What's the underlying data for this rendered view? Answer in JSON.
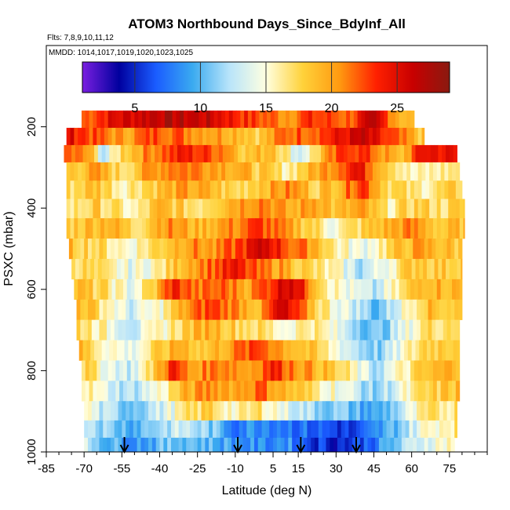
{
  "chart_data": {
    "type": "heatmap",
    "title": "ATOM3 Northbound Days_Since_BdyInf_All",
    "flights_note": "Flts: 7,8,9,10,11,12",
    "dates_note": "MMDD: 1014,1017,1019,1020,1023,1025",
    "xlabel": "Latitude (deg N)",
    "ylabel": "PSXC (mbar)",
    "xlim": [
      -85,
      90
    ],
    "ylim": [
      1000,
      0
    ],
    "x_ticks": [
      -85,
      -70,
      -55,
      -40,
      -25,
      -10,
      5,
      15,
      30,
      45,
      60,
      75
    ],
    "x_tick_labels": [
      "-85",
      "-70",
      "-55",
      "-40",
      "-25",
      "-10",
      "5",
      "15",
      "30",
      "45",
      "60",
      "75"
    ],
    "y_ticks": [
      200,
      400,
      600,
      800,
      1000
    ],
    "y_tick_labels": [
      "200",
      "400",
      "600",
      "800",
      "1000"
    ],
    "colorbar": {
      "range": [
        1,
        29
      ],
      "ticks": [
        5,
        10,
        15,
        20,
        25
      ],
      "tick_labels": [
        "5",
        "10",
        "15",
        "20",
        "25"
      ],
      "colors": [
        "#7a1fe0",
        "#00009e",
        "#1a5cff",
        "#3aaaf0",
        "#b8e4fa",
        "#ffffe0",
        "#ffd23a",
        "#ff9a10",
        "#ff2000",
        "#c80000",
        "#8a1a10"
      ]
    },
    "arrows_at_latitude": [
      -54,
      -9,
      16,
      38
    ],
    "bands": [
      {
        "p": 180,
        "lat_min": -71,
        "lat_max": 61,
        "anchors": [
          [
            -70,
            22
          ],
          [
            -58,
            25
          ],
          [
            -40,
            27
          ],
          [
            -20,
            26
          ],
          [
            -5,
            23
          ],
          [
            10,
            21
          ],
          [
            20,
            23
          ],
          [
            35,
            22
          ],
          [
            45,
            26
          ],
          [
            55,
            20
          ],
          [
            61,
            18
          ]
        ]
      },
      {
        "p": 225,
        "lat_min": -77,
        "lat_max": 65,
        "anchors": [
          [
            -76,
            25
          ],
          [
            -65,
            22
          ],
          [
            -55,
            20
          ],
          [
            -40,
            23
          ],
          [
            -25,
            21
          ],
          [
            -10,
            20
          ],
          [
            0,
            18
          ],
          [
            10,
            22
          ],
          [
            25,
            23
          ],
          [
            40,
            26
          ],
          [
            52,
            22
          ],
          [
            65,
            18
          ]
        ]
      },
      {
        "p": 265,
        "lat_min": -78,
        "lat_max": 78,
        "anchors": [
          [
            -77,
            22
          ],
          [
            -68,
            20
          ],
          [
            -62,
            12
          ],
          [
            -55,
            18
          ],
          [
            -45,
            21
          ],
          [
            -30,
            24
          ],
          [
            -15,
            22
          ],
          [
            -5,
            18
          ],
          [
            5,
            20
          ],
          [
            15,
            13
          ],
          [
            25,
            19
          ],
          [
            35,
            24
          ],
          [
            45,
            22
          ],
          [
            55,
            18
          ],
          [
            65,
            25
          ],
          [
            78,
            24
          ]
        ]
      },
      {
        "p": 310,
        "lat_min": -77,
        "lat_max": 79,
        "anchors": [
          [
            -77,
            18
          ],
          [
            -65,
            20
          ],
          [
            -55,
            17
          ],
          [
            -45,
            20
          ],
          [
            -35,
            22
          ],
          [
            -20,
            21
          ],
          [
            -10,
            20
          ],
          [
            0,
            18
          ],
          [
            10,
            16
          ],
          [
            20,
            19
          ],
          [
            30,
            22
          ],
          [
            38,
            25
          ],
          [
            48,
            20
          ],
          [
            60,
            15
          ],
          [
            70,
            16
          ],
          [
            79,
            17
          ]
        ]
      },
      {
        "p": 355,
        "lat_min": -77,
        "lat_max": 80,
        "anchors": [
          [
            -77,
            17
          ],
          [
            -65,
            19
          ],
          [
            -55,
            16
          ],
          [
            -45,
            18
          ],
          [
            -30,
            20
          ],
          [
            -20,
            19
          ],
          [
            -10,
            17
          ],
          [
            0,
            19
          ],
          [
            12,
            21
          ],
          [
            22,
            18
          ],
          [
            32,
            20
          ],
          [
            40,
            24
          ],
          [
            50,
            18
          ],
          [
            62,
            16
          ],
          [
            72,
            17
          ],
          [
            80,
            18
          ]
        ]
      },
      {
        "p": 400,
        "lat_min": -77,
        "lat_max": 81,
        "anchors": [
          [
            -77,
            16
          ],
          [
            -65,
            18
          ],
          [
            -50,
            15
          ],
          [
            -40,
            19
          ],
          [
            -25,
            17
          ],
          [
            -12,
            20
          ],
          [
            0,
            22
          ],
          [
            12,
            19
          ],
          [
            22,
            21
          ],
          [
            30,
            18
          ],
          [
            40,
            20
          ],
          [
            50,
            16
          ],
          [
            62,
            18
          ],
          [
            72,
            17
          ],
          [
            81,
            18
          ]
        ]
      },
      {
        "p": 450,
        "lat_min": -77,
        "lat_max": 81,
        "anchors": [
          [
            -77,
            18
          ],
          [
            -60,
            20
          ],
          [
            -50,
            17
          ],
          [
            -38,
            21
          ],
          [
            -25,
            19
          ],
          [
            -10,
            21
          ],
          [
            0,
            23
          ],
          [
            10,
            20
          ],
          [
            20,
            18
          ],
          [
            28,
            15
          ],
          [
            38,
            17
          ],
          [
            48,
            19
          ],
          [
            60,
            21
          ],
          [
            72,
            18
          ],
          [
            81,
            19
          ]
        ]
      },
      {
        "p": 500,
        "lat_min": -76,
        "lat_max": 80,
        "anchors": [
          [
            -76,
            19
          ],
          [
            -62,
            17
          ],
          [
            -52,
            15
          ],
          [
            -40,
            18
          ],
          [
            -28,
            21
          ],
          [
            -18,
            20
          ],
          [
            -8,
            23
          ],
          [
            2,
            26
          ],
          [
            12,
            22
          ],
          [
            22,
            20
          ],
          [
            30,
            16
          ],
          [
            40,
            14
          ],
          [
            50,
            17
          ],
          [
            62,
            20
          ],
          [
            72,
            19
          ],
          [
            80,
            18
          ]
        ]
      },
      {
        "p": 550,
        "lat_min": -75,
        "lat_max": 80,
        "anchors": [
          [
            -75,
            18
          ],
          [
            -62,
            16
          ],
          [
            -52,
            14
          ],
          [
            -40,
            16
          ],
          [
            -30,
            20
          ],
          [
            -20,
            22
          ],
          [
            -10,
            24
          ],
          [
            0,
            21
          ],
          [
            10,
            20
          ],
          [
            20,
            17
          ],
          [
            30,
            15
          ],
          [
            40,
            12
          ],
          [
            50,
            15
          ],
          [
            62,
            19
          ],
          [
            72,
            18
          ],
          [
            80,
            19
          ]
        ]
      },
      {
        "p": 600,
        "lat_min": -74,
        "lat_max": 80,
        "anchors": [
          [
            -74,
            19
          ],
          [
            -62,
            17
          ],
          [
            -52,
            14
          ],
          [
            -42,
            18
          ],
          [
            -35,
            24
          ],
          [
            -25,
            21
          ],
          [
            -15,
            22
          ],
          [
            -5,
            20
          ],
          [
            5,
            24
          ],
          [
            12,
            27
          ],
          [
            20,
            21
          ],
          [
            28,
            16
          ],
          [
            36,
            14
          ],
          [
            45,
            12
          ],
          [
            55,
            16
          ],
          [
            65,
            20
          ],
          [
            80,
            19
          ]
        ]
      },
      {
        "p": 650,
        "lat_min": -73,
        "lat_max": 80,
        "anchors": [
          [
            -73,
            20
          ],
          [
            -60,
            16
          ],
          [
            -52,
            13
          ],
          [
            -40,
            15
          ],
          [
            -30,
            20
          ],
          [
            -20,
            23
          ],
          [
            -10,
            21
          ],
          [
            0,
            19
          ],
          [
            8,
            26
          ],
          [
            15,
            22
          ],
          [
            22,
            18
          ],
          [
            30,
            15
          ],
          [
            38,
            13
          ],
          [
            46,
            10
          ],
          [
            55,
            14
          ],
          [
            65,
            19
          ],
          [
            80,
            18
          ]
        ]
      },
      {
        "p": 700,
        "lat_min": -73,
        "lat_max": 79,
        "anchors": [
          [
            -73,
            18
          ],
          [
            -60,
            15
          ],
          [
            -50,
            13
          ],
          [
            -40,
            15
          ],
          [
            -30,
            18
          ],
          [
            -20,
            20
          ],
          [
            -10,
            18
          ],
          [
            0,
            17
          ],
          [
            10,
            15
          ],
          [
            20,
            17
          ],
          [
            30,
            14
          ],
          [
            38,
            12
          ],
          [
            46,
            10
          ],
          [
            55,
            13
          ],
          [
            65,
            17
          ],
          [
            79,
            18
          ]
        ]
      },
      {
        "p": 750,
        "lat_min": -72,
        "lat_max": 79,
        "anchors": [
          [
            -72,
            19
          ],
          [
            -62,
            16
          ],
          [
            -52,
            14
          ],
          [
            -42,
            17
          ],
          [
            -32,
            20
          ],
          [
            -22,
            18
          ],
          [
            -10,
            21
          ],
          [
            0,
            23
          ],
          [
            10,
            20
          ],
          [
            20,
            18
          ],
          [
            30,
            15
          ],
          [
            40,
            12
          ],
          [
            48,
            11
          ],
          [
            55,
            14
          ],
          [
            65,
            18
          ],
          [
            79,
            19
          ]
        ]
      },
      {
        "p": 800,
        "lat_min": -71,
        "lat_max": 79,
        "anchors": [
          [
            -71,
            18
          ],
          [
            -62,
            15
          ],
          [
            -52,
            13
          ],
          [
            -45,
            16
          ],
          [
            -35,
            24
          ],
          [
            -28,
            20
          ],
          [
            -15,
            22
          ],
          [
            -5,
            20
          ],
          [
            5,
            24
          ],
          [
            15,
            21
          ],
          [
            25,
            19
          ],
          [
            35,
            16
          ],
          [
            45,
            12
          ],
          [
            55,
            15
          ],
          [
            65,
            18
          ],
          [
            79,
            20
          ]
        ]
      },
      {
        "p": 850,
        "lat_min": -71,
        "lat_max": 79,
        "anchors": [
          [
            -71,
            17
          ],
          [
            -62,
            14
          ],
          [
            -52,
            12
          ],
          [
            -40,
            15
          ],
          [
            -30,
            19
          ],
          [
            -20,
            21
          ],
          [
            -10,
            20
          ],
          [
            0,
            22
          ],
          [
            10,
            19
          ],
          [
            20,
            17
          ],
          [
            30,
            15
          ],
          [
            38,
            13
          ],
          [
            45,
            11
          ],
          [
            55,
            14
          ],
          [
            65,
            17
          ],
          [
            79,
            19
          ]
        ]
      },
      {
        "p": 900,
        "lat_min": -70,
        "lat_max": 78,
        "anchors": [
          [
            -70,
            16
          ],
          [
            -62,
            12
          ],
          [
            -52,
            11
          ],
          [
            -40,
            13
          ],
          [
            -30,
            16
          ],
          [
            -20,
            18
          ],
          [
            -10,
            15
          ],
          [
            0,
            17
          ],
          [
            10,
            14
          ],
          [
            20,
            12
          ],
          [
            30,
            11
          ],
          [
            38,
            10
          ],
          [
            46,
            9
          ],
          [
            55,
            12
          ],
          [
            65,
            16
          ],
          [
            78,
            17
          ]
        ]
      },
      {
        "p": 945,
        "lat_min": -70,
        "lat_max": 78,
        "anchors": [
          [
            -70,
            14
          ],
          [
            -60,
            11
          ],
          [
            -50,
            10
          ],
          [
            -40,
            12
          ],
          [
            -30,
            13
          ],
          [
            -20,
            11
          ],
          [
            -10,
            8
          ],
          [
            0,
            9
          ],
          [
            10,
            8
          ],
          [
            20,
            7
          ],
          [
            30,
            6
          ],
          [
            38,
            5
          ],
          [
            46,
            8
          ],
          [
            55,
            11
          ],
          [
            65,
            15
          ],
          [
            78,
            17
          ]
        ]
      },
      {
        "p": 985,
        "lat_min": -70,
        "lat_max": 77,
        "anchors": [
          [
            -70,
            13
          ],
          [
            -60,
            10
          ],
          [
            -50,
            9
          ],
          [
            -40,
            10
          ],
          [
            -30,
            11
          ],
          [
            -20,
            10
          ],
          [
            -10,
            9
          ],
          [
            0,
            8
          ],
          [
            10,
            9
          ],
          [
            20,
            6
          ],
          [
            30,
            5
          ],
          [
            38,
            6
          ],
          [
            46,
            8
          ],
          [
            55,
            11
          ],
          [
            65,
            14
          ],
          [
            77,
            16
          ]
        ]
      }
    ]
  }
}
